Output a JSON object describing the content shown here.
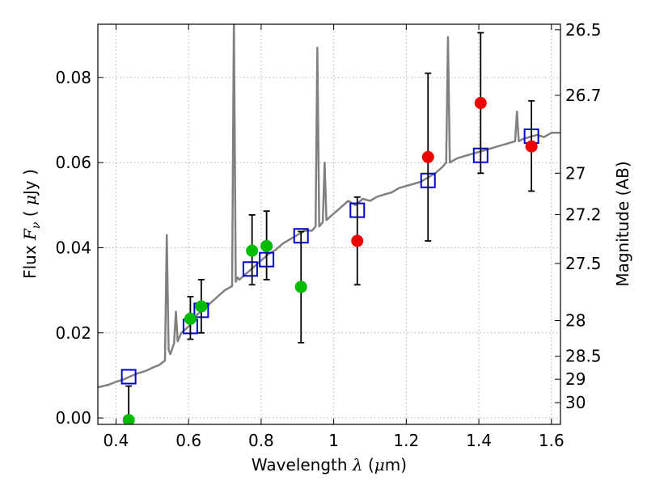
{
  "chart_data": {
    "type": "scatter",
    "xlabel": "Wavelength  λ (μm)",
    "ylabel": "Flux  F_ν ( μJy )",
    "ylabel_right": "Magnitude (AB)",
    "xlim": [
      0.35,
      1.625
    ],
    "ylim": [
      -0.0015,
      0.0925
    ],
    "grid": true,
    "x_ticks": [
      0.4,
      0.6,
      0.8,
      1.0,
      1.2,
      1.4,
      1.6
    ],
    "x_tick_labels": [
      "0.4",
      "0.6",
      "0.8",
      "1",
      "1.2",
      "1.4",
      "1.6"
    ],
    "y_ticks": [
      0.0,
      0.02,
      0.04,
      0.06,
      0.08
    ],
    "y_tick_labels": [
      "0.00",
      "0.02",
      "0.04",
      "0.06",
      "0.08"
    ],
    "right_ticks": [
      {
        "label": "26.5",
        "flux": 0.0912
      },
      {
        "label": "26.7",
        "flux": 0.0758
      },
      {
        "label": "27",
        "flux": 0.0575
      },
      {
        "label": "27.2",
        "flux": 0.0478
      },
      {
        "label": "27.5",
        "flux": 0.0363
      },
      {
        "label": "28",
        "flux": 0.0229
      },
      {
        "label": "28.5",
        "flux": 0.0145
      },
      {
        "label": "29",
        "flux": 0.0091
      },
      {
        "label": "30",
        "flux": 0.0036
      }
    ],
    "series": [
      {
        "kind": "line",
        "color": "#808080",
        "x": [
          0.35,
          0.38,
          0.4,
          0.42,
          0.44,
          0.46,
          0.48,
          0.5,
          0.52,
          0.535,
          0.54,
          0.545,
          0.55,
          0.56,
          0.565,
          0.57,
          0.58,
          0.6,
          0.62,
          0.64,
          0.66,
          0.68,
          0.7,
          0.72,
          0.725,
          0.73,
          0.735,
          0.74,
          0.76,
          0.78,
          0.8,
          0.82,
          0.84,
          0.86,
          0.88,
          0.9,
          0.92,
          0.94,
          0.95,
          0.955,
          0.96,
          0.97,
          0.975,
          0.98,
          1.0,
          1.02,
          1.04,
          1.06,
          1.08,
          1.1,
          1.12,
          1.14,
          1.16,
          1.18,
          1.2,
          1.22,
          1.24,
          1.26,
          1.28,
          1.3,
          1.31,
          1.315,
          1.32,
          1.34,
          1.36,
          1.38,
          1.4,
          1.42,
          1.44,
          1.46,
          1.48,
          1.5,
          1.505,
          1.51,
          1.52,
          1.54,
          1.56,
          1.58,
          1.6,
          1.625
        ],
        "y": [
          0.0072,
          0.0078,
          0.0085,
          0.009,
          0.0098,
          0.0105,
          0.011,
          0.0118,
          0.0125,
          0.0135,
          0.043,
          0.016,
          0.015,
          0.0175,
          0.025,
          0.018,
          0.02,
          0.0215,
          0.024,
          0.0255,
          0.027,
          0.0285,
          0.03,
          0.031,
          0.094,
          0.032,
          0.033,
          0.0325,
          0.034,
          0.0355,
          0.037,
          0.0385,
          0.0395,
          0.041,
          0.042,
          0.043,
          0.044,
          0.044,
          0.045,
          0.087,
          0.045,
          0.046,
          0.06,
          0.0465,
          0.048,
          0.0495,
          0.051,
          0.05,
          0.0515,
          0.051,
          0.052,
          0.0525,
          0.053,
          0.054,
          0.0545,
          0.055,
          0.0555,
          0.0565,
          0.0575,
          0.059,
          0.06,
          0.0895,
          0.06,
          0.061,
          0.0615,
          0.062,
          0.0625,
          0.063,
          0.0635,
          0.064,
          0.0645,
          0.065,
          0.072,
          0.065,
          0.0655,
          0.066,
          0.0665,
          0.066,
          0.067,
          0.067
        ]
      },
      {
        "kind": "squares",
        "color": "#0000cc",
        "x": [
          0.435,
          0.605,
          0.635,
          0.77,
          0.815,
          0.91,
          1.065,
          1.26,
          1.405,
          1.545
        ],
        "y": [
          0.0097,
          0.0215,
          0.0253,
          0.035,
          0.0372,
          0.0428,
          0.0488,
          0.0558,
          0.0617,
          0.0662
        ]
      },
      {
        "kind": "circles",
        "color": "#00bb00",
        "x": [
          0.435,
          0.605,
          0.635,
          0.775,
          0.815,
          0.91
        ],
        "y": [
          -0.0005,
          0.0233,
          0.0262,
          0.0393,
          0.0404,
          0.0308
        ],
        "err_low": [
          0.0008,
          0.0048,
          0.0062,
          0.008,
          0.0079,
          0.0131
        ],
        "err_high": [
          0.008,
          0.0052,
          0.0063,
          0.0084,
          0.0082,
          0.013
        ]
      },
      {
        "kind": "circles",
        "color": "#ee0000",
        "x": [
          1.065,
          1.26,
          1.405,
          1.545
        ],
        "y": [
          0.0416,
          0.0613,
          0.074,
          0.0638
        ],
        "err_low": [
          0.0103,
          0.0197,
          0.0165,
          0.0105
        ],
        "err_high": [
          0.0103,
          0.0197,
          0.0165,
          0.0107
        ]
      }
    ]
  }
}
